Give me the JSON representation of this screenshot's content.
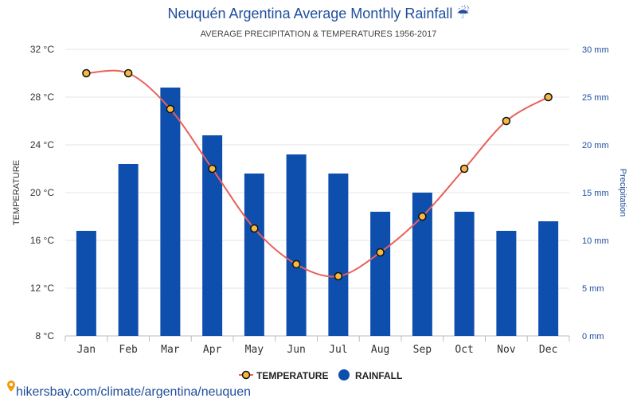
{
  "chart_data": {
    "type": "bar",
    "title": "Neuquén Argentina Average Monthly Rainfall",
    "subtitle": "AVERAGE PRECIPITATION & TEMPERATURES 1956-2017",
    "title_icon": "umbrella-rain-icon",
    "categories": [
      "Jan",
      "Feb",
      "Mar",
      "Apr",
      "May",
      "Jun",
      "Jul",
      "Aug",
      "Sep",
      "Oct",
      "Nov",
      "Dec"
    ],
    "series": [
      {
        "name": "TEMPERATURE",
        "kind": "line",
        "axis": "left",
        "color": "#e8605a",
        "marker_fill": "#f5b942",
        "values": [
          30,
          30,
          27,
          22,
          17,
          14,
          13,
          15,
          18,
          22,
          26,
          28
        ]
      },
      {
        "name": "RAINFALL",
        "kind": "bar",
        "axis": "right",
        "color": "#0e4fae",
        "values": [
          11,
          18,
          26,
          21,
          17,
          19,
          17,
          13,
          15,
          13,
          11,
          12
        ]
      }
    ],
    "y_left": {
      "label": "TEMPERATURE",
      "ticks": [
        "8 °C",
        "12 °C",
        "16 °C",
        "20 °C",
        "24 °C",
        "28 °C",
        "32 °C"
      ],
      "ylim": [
        8,
        32
      ]
    },
    "y_right": {
      "label": "Precipitation",
      "ticks": [
        "0 mm",
        "5 mm",
        "10 mm",
        "15 mm",
        "20 mm",
        "25 mm",
        "30 mm"
      ],
      "ylim": [
        0,
        30
      ]
    },
    "grid": true,
    "legend_position": "bottom-center"
  },
  "footer": {
    "text": "hikersbay.com/climate/argentina/neuquen",
    "icon": "location-pin-icon"
  }
}
